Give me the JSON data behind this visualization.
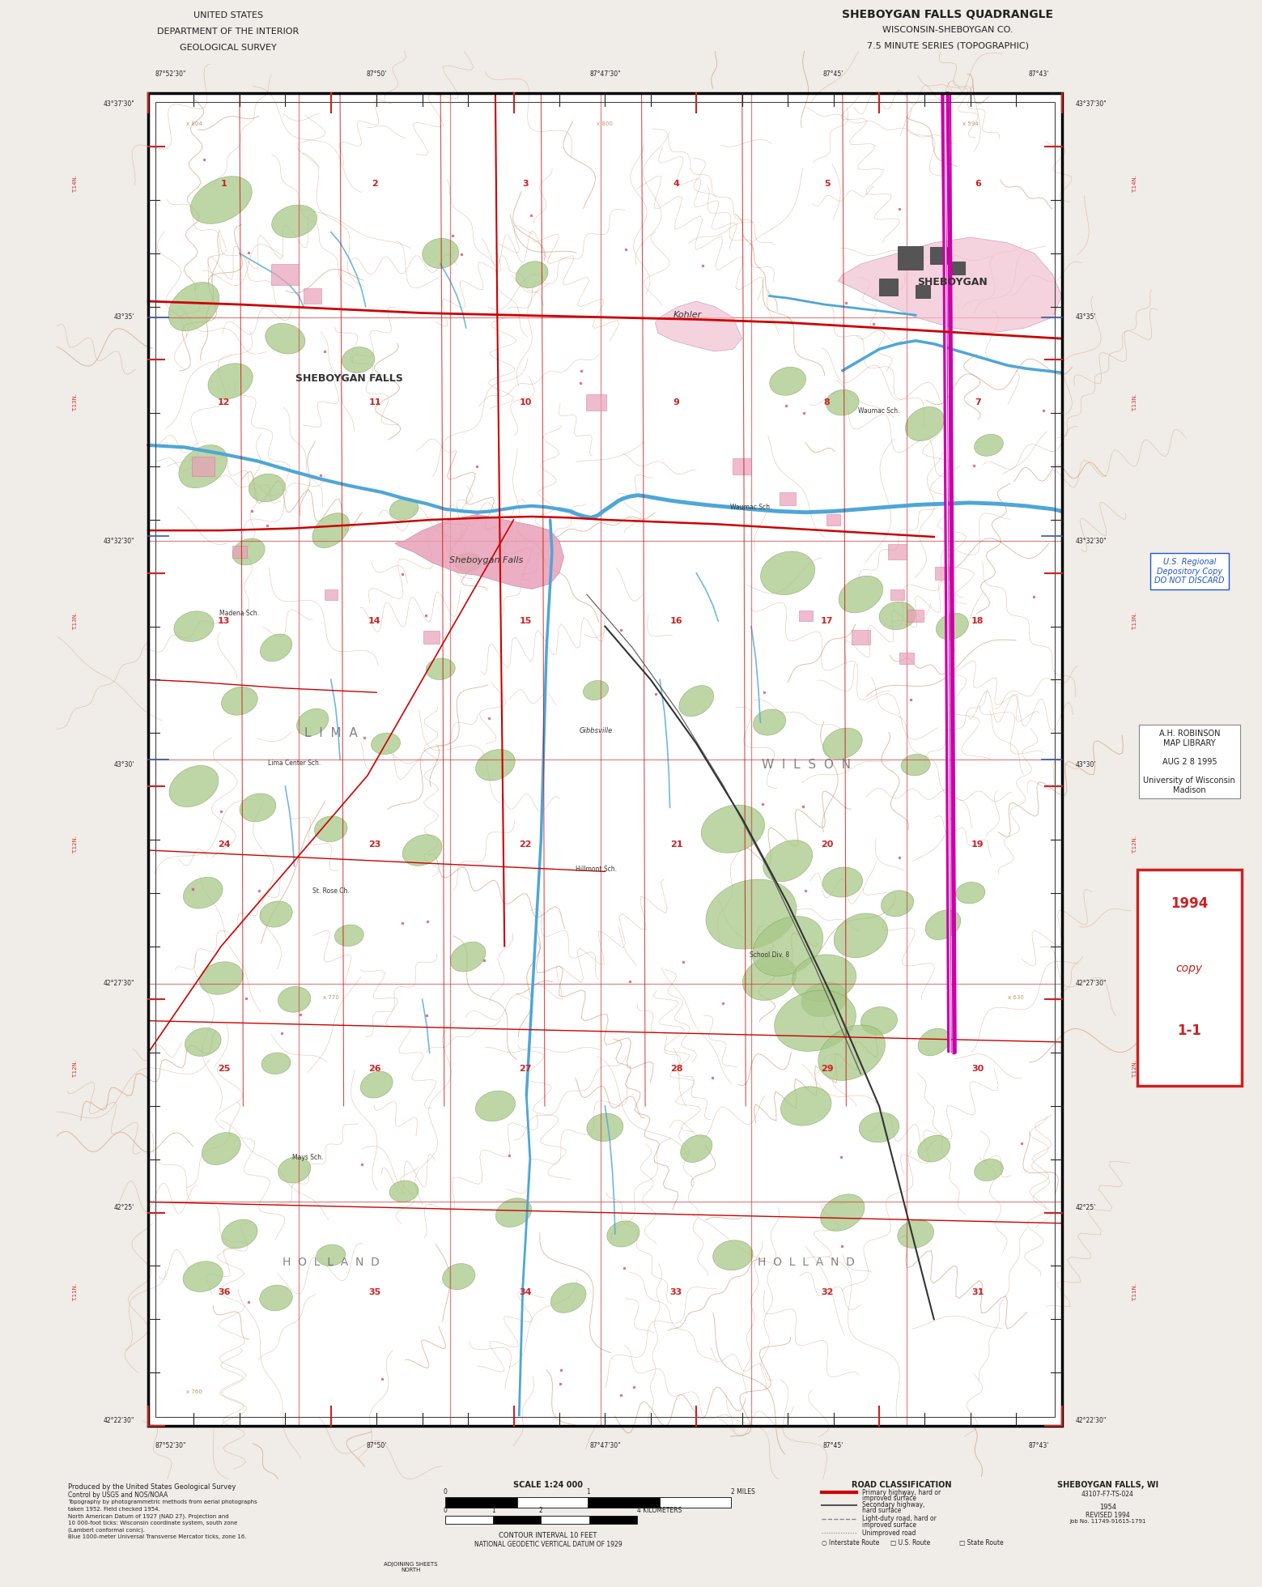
{
  "title_left_line1": "UNITED STATES",
  "title_left_line2": "DEPARTMENT OF THE INTERIOR",
  "title_left_line3": "GEOLOGICAL SURVEY",
  "title_right_line1": "SHEBOYGAN FALLS QUADRANGLE",
  "title_right_line2": "WISCONSIN-SHEBOYGAN CO.",
  "title_right_line3": "7.5 MINUTE SERIES (TOPOGRAPHIC)",
  "map_bg": "#ffffff",
  "topo_color": "#c8906a",
  "water_color": "#4da6d8",
  "road_red_color": "#cc0000",
  "highway_magenta": "#cc00aa",
  "urban_pink": "#e8a0b8",
  "forest_green": "#a8c888",
  "dark_green": "#70a050",
  "border_black": "#222222",
  "grid_red": "#cc3333",
  "text_black": "#222222",
  "blue_text": "#2255cc",
  "stamp_red": "#cc2222",
  "note_text": "#444444"
}
